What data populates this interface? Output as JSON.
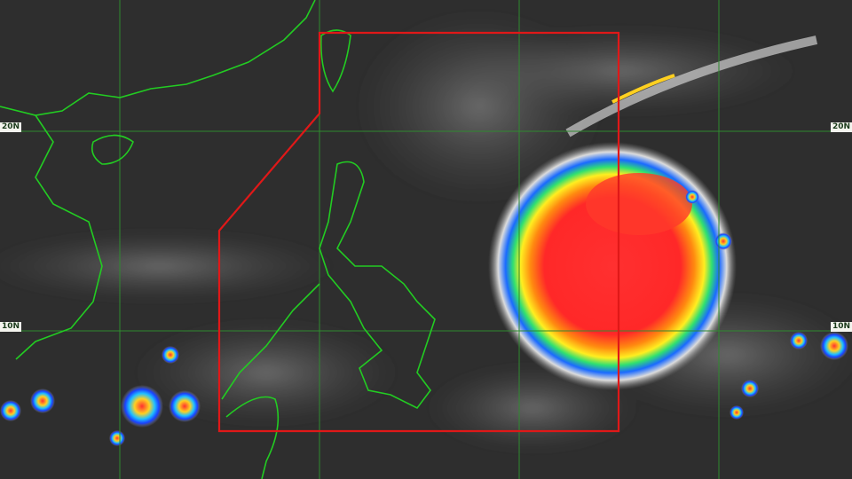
{
  "image": {
    "kind": "infrared satellite image with coastline overlay",
    "colors": {
      "background": "#2e2e2e",
      "coastline": "#22cc22",
      "gridline": "#2f8a2f",
      "par_boundary": "#e01818",
      "storm_core": "#ff2a2a"
    }
  },
  "latitude_labels": {
    "left_20": "20N",
    "right_20": "20N",
    "left_10": "10N",
    "right_10": "10N"
  }
}
